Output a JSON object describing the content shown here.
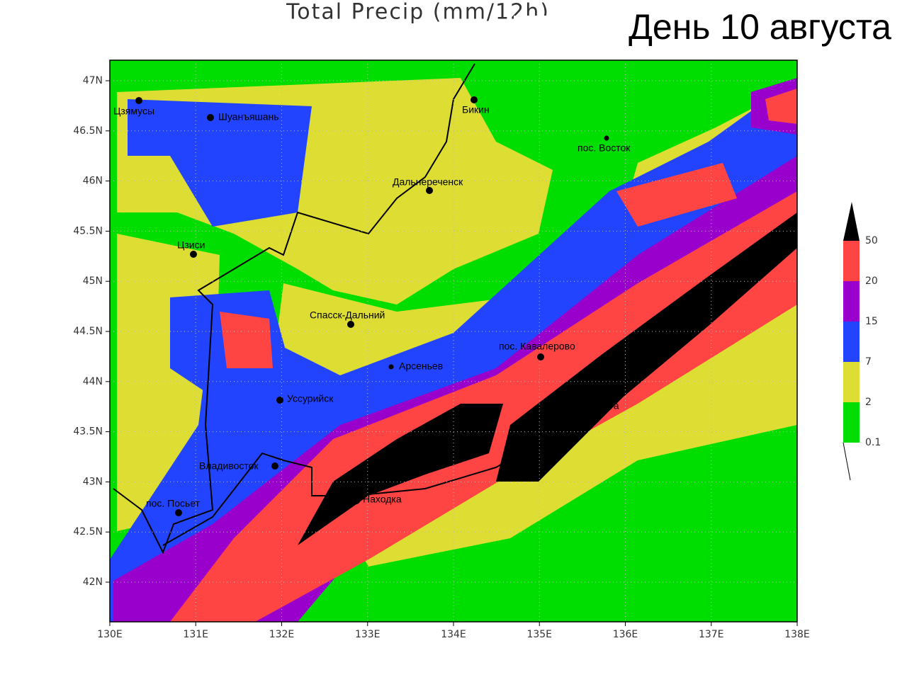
{
  "header": {
    "title": "Total Precip (mm/12h)",
    "overlay": "День 10 августа"
  },
  "axes": {
    "x_ticks": [
      "130E",
      "131E",
      "132E",
      "133E",
      "134E",
      "135E",
      "136E",
      "137E",
      "138E"
    ],
    "y_ticks": [
      "47N",
      "46.5N",
      "46N",
      "45.5N",
      "45N",
      "44.5N",
      "44N",
      "43.5N",
      "43N",
      "42.5N",
      "42N"
    ]
  },
  "legend": {
    "levels": [
      "50",
      "20",
      "15",
      "7",
      "2",
      "0.1"
    ]
  },
  "places": [
    {
      "label": "Цзямусы"
    },
    {
      "label": "Шуанъяшань"
    },
    {
      "label": "Бикин"
    },
    {
      "label": "пос. Восток"
    },
    {
      "label": "Дальнереченск"
    },
    {
      "label": "Цзиси"
    },
    {
      "label": "Спасск-Дальний"
    },
    {
      "label": "Арсеньев"
    },
    {
      "label": "пос. Кавалерово"
    },
    {
      "label": "Уссурийск"
    },
    {
      "label": "с. Ольга"
    },
    {
      "label": "Владивосток"
    },
    {
      "label": "пос. Посьет"
    },
    {
      "label": "Находка"
    }
  ]
}
